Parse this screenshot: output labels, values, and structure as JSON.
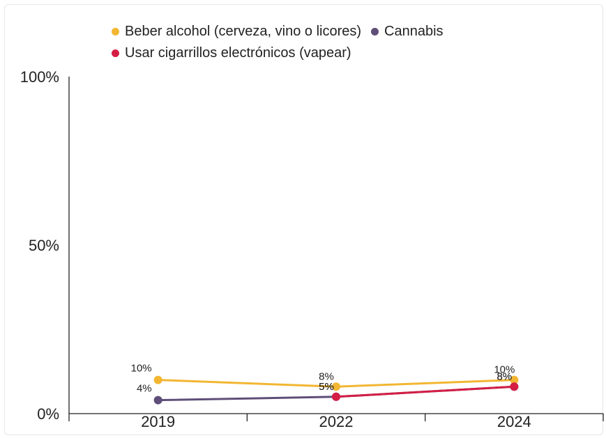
{
  "chart_data": {
    "type": "line",
    "x": [
      "2019",
      "2022",
      "2024"
    ],
    "ylim": [
      0,
      100
    ],
    "yticks": [
      "0%",
      "50%",
      "100%"
    ],
    "legend_position": "top",
    "series": [
      {
        "name": "Beber alcohol (cerveza, vino o licores)",
        "color": "#F2B632",
        "values": [
          10,
          8,
          10
        ],
        "labels": [
          "10%",
          "8%",
          "10%"
        ]
      },
      {
        "name": "Cannabis",
        "color": "#5E4E78",
        "values": [
          4,
          5,
          8
        ],
        "labels": [
          "4%",
          "5%",
          "8%"
        ]
      },
      {
        "name": "Usar cigarrillos electrónicos (vapear)",
        "color": "#D41E45",
        "values": [
          null,
          5,
          8
        ],
        "labels": [
          null,
          "5%",
          "8%"
        ]
      }
    ]
  }
}
